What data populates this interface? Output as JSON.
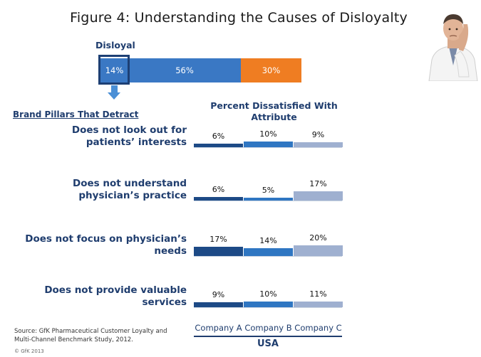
{
  "title": "Figure 4: Understanding the Causes of Disloyalty",
  "disloyal_label": "Disloyal",
  "stacked_bar": {
    "segments": [
      {
        "label": "14%",
        "value": 14,
        "color": "#3a78c4"
      },
      {
        "label": "56%",
        "value": 56,
        "color": "#3a78c4"
      },
      {
        "label": "30%",
        "value": 30,
        "color": "#ef7d22"
      }
    ]
  },
  "pillars_heading": "Brand Pillars That Detract",
  "percent_heading": "Percent Dissatisfied With Attribute",
  "source": "Source: GfK Pharmaceutical Customer Loyalty and Multi-Channel Benchmark Study, 2012.",
  "copyright": "© GfK 2013",
  "colors": {
    "company_a": "#1d4a86",
    "company_b": "#2f76c2",
    "company_c": "#9fb0d0"
  },
  "chart_data": {
    "type": "bar",
    "title": "Percent Dissatisfied With Attribute",
    "xlabel": "USA",
    "ylabel": "",
    "ylim": [
      0,
      100
    ],
    "categories": [
      "Does not look out for patients’ interests",
      "Does not understand physician’s practice",
      "Does not focus on physician’s needs",
      "Does not provide valuable services"
    ],
    "category_lines": [
      [
        "Does not look out for",
        "patients’ interests"
      ],
      [
        "Does not understand",
        "physician’s practice"
      ],
      [
        "Does not focus on physician’s",
        "needs"
      ],
      [
        "Does not provide valuable",
        "services"
      ]
    ],
    "series": [
      {
        "name": "Company A",
        "values": [
          6,
          6,
          17,
          9
        ],
        "labels": [
          "6%",
          "6%",
          "17%",
          "9%"
        ]
      },
      {
        "name": "Company B",
        "values": [
          10,
          5,
          14,
          10
        ],
        "labels": [
          "10%",
          "5%",
          "14%",
          "10%"
        ]
      },
      {
        "name": "Company C",
        "values": [
          9,
          17,
          20,
          11
        ],
        "labels": [
          "9%",
          "17%",
          "20%",
          "11%"
        ]
      }
    ]
  }
}
